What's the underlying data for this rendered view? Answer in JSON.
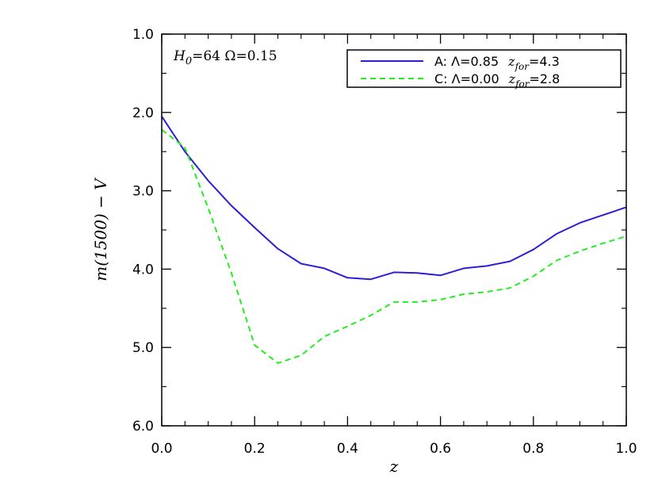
{
  "chart_data": {
    "type": "line",
    "xlabel": "z",
    "ylabel": "m(1500) − V",
    "xlim": [
      0.0,
      1.0
    ],
    "ylim": [
      1.0,
      6.0
    ],
    "y_inverted": true,
    "x_ticks": [
      "0.0",
      "0.2",
      "0.4",
      "0.6",
      "0.8",
      "1.0"
    ],
    "y_ticks": [
      "1.0",
      "2.0",
      "3.0",
      "4.0",
      "5.0",
      "6.0"
    ],
    "x_tick_values": [
      0.0,
      0.2,
      0.4,
      0.6,
      0.8,
      1.0
    ],
    "y_tick_values": [
      1.0,
      2.0,
      3.0,
      4.0,
      5.0,
      6.0
    ],
    "annotation": {
      "h_symbol": "H",
      "h_sub": "0",
      "h_value": "=64  Ω=0.15"
    },
    "legend_position": "top-right",
    "series": [
      {
        "name": "A: Λ=0.85",
        "label_prefix": "A: Λ=0.85",
        "label_z": "z",
        "label_sub": "for",
        "label_suffix": "=4.3",
        "color": "#2a1fd6",
        "dash": "solid",
        "x": [
          0.0,
          0.05,
          0.1,
          0.15,
          0.2,
          0.25,
          0.3,
          0.35,
          0.4,
          0.45,
          0.5,
          0.55,
          0.6,
          0.65,
          0.7,
          0.75,
          0.8,
          0.85,
          0.9,
          0.95,
          1.0
        ],
        "y": [
          2.05,
          2.5,
          2.87,
          3.19,
          3.47,
          3.74,
          3.93,
          3.99,
          4.11,
          4.13,
          4.04,
          4.05,
          4.08,
          3.99,
          3.96,
          3.9,
          3.75,
          3.55,
          3.41,
          3.31,
          3.21
        ]
      },
      {
        "name": "C: Λ=0.00",
        "label_prefix": "C: Λ=0.00",
        "label_z": "z",
        "label_sub": "for",
        "label_suffix": "=2.8",
        "color": "#22ee22",
        "dash": "dashed",
        "x": [
          0.0,
          0.05,
          0.1,
          0.15,
          0.2,
          0.25,
          0.3,
          0.35,
          0.4,
          0.45,
          0.5,
          0.55,
          0.6,
          0.65,
          0.7,
          0.75,
          0.8,
          0.85,
          0.9,
          0.95,
          1.0
        ],
        "y": [
          2.22,
          2.45,
          3.22,
          4.05,
          4.97,
          5.2,
          5.1,
          4.86,
          4.73,
          4.59,
          4.42,
          4.42,
          4.39,
          4.32,
          4.29,
          4.24,
          4.09,
          3.89,
          3.77,
          3.67,
          3.58
        ]
      }
    ]
  }
}
